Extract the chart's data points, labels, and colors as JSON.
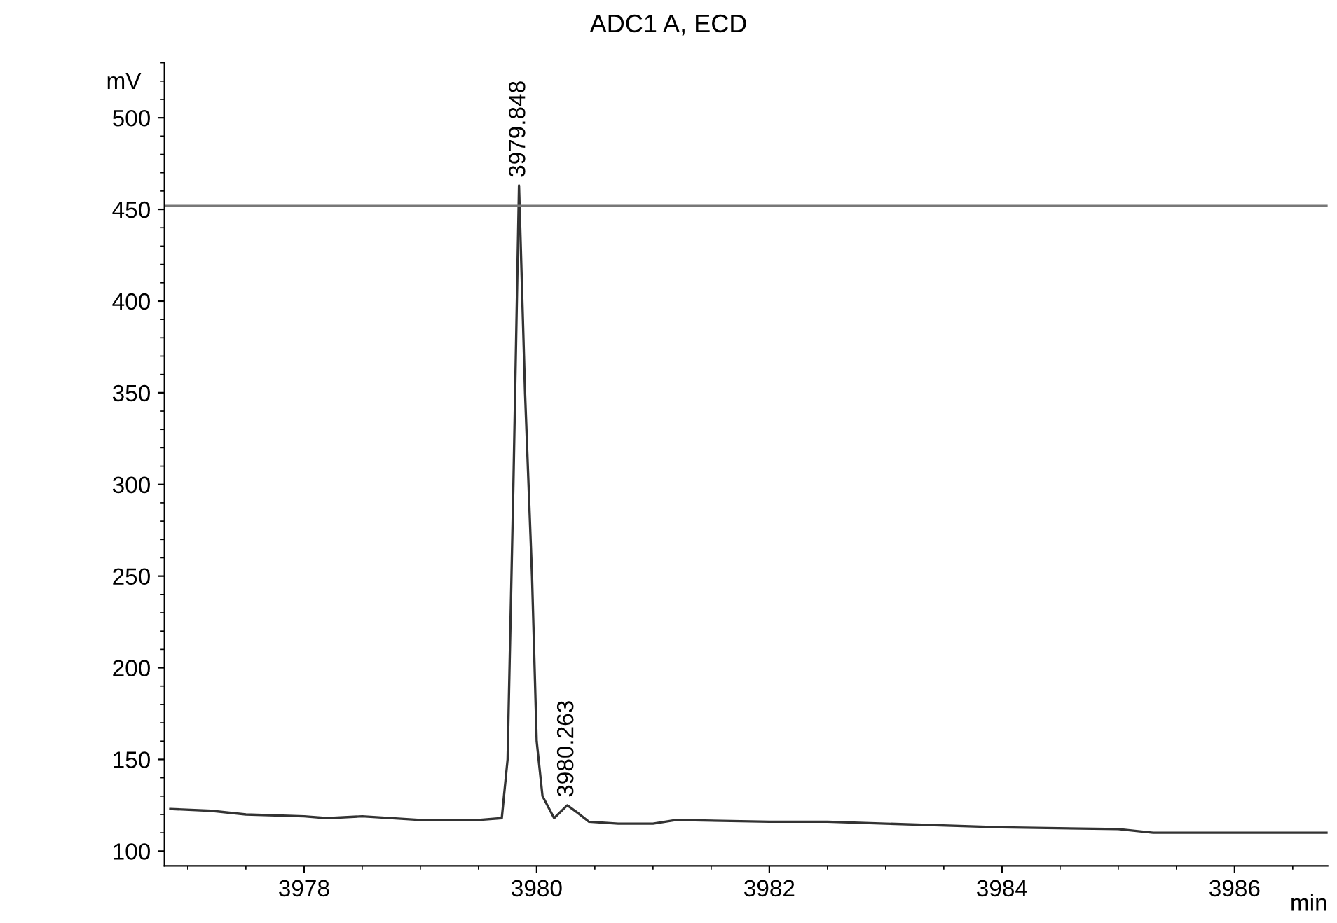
{
  "chart_data": {
    "type": "line",
    "title": "ADC1 A, ECD",
    "ylabel": "mV",
    "xlabel": "min",
    "x": [
      3976.85,
      3977.2,
      3977.5,
      3978.0,
      3978.2,
      3978.5,
      3979.0,
      3979.5,
      3979.7,
      3979.75,
      3979.8,
      3979.848,
      3979.9,
      3979.96,
      3980.0,
      3980.05,
      3980.15,
      3980.263,
      3980.35,
      3980.45,
      3980.7,
      3981.0,
      3981.2,
      3982.0,
      3982.5,
      3983.0,
      3984.0,
      3985.0,
      3985.3,
      3986.0,
      3986.8
    ],
    "series": [
      {
        "color": "#333333",
        "values": [
          123,
          122,
          120,
          119,
          118,
          119,
          117,
          117,
          118,
          150,
          300,
          463,
          350,
          250,
          160,
          130,
          118,
          125,
          121,
          116,
          115,
          115,
          117,
          116,
          116,
          115,
          113,
          112,
          110,
          110,
          110
        ]
      }
    ],
    "annotations": [
      {
        "text": "3979.848",
        "x": 3979.848,
        "y": 463
      },
      {
        "text": "3980.263",
        "x": 3980.263,
        "y": 125
      }
    ],
    "ref_lines": [
      {
        "axis": "y",
        "value": 452,
        "color": "#777777"
      }
    ],
    "xlim": [
      3976.8,
      3986.8
    ],
    "ylim": [
      92,
      530
    ],
    "xticks": [
      3978,
      3980,
      3982,
      3984,
      3986
    ],
    "yticks": [
      100,
      150,
      200,
      250,
      300,
      350,
      400,
      450,
      500
    ],
    "grid": false,
    "legend": false,
    "line_style": "solid",
    "marker": "none"
  }
}
